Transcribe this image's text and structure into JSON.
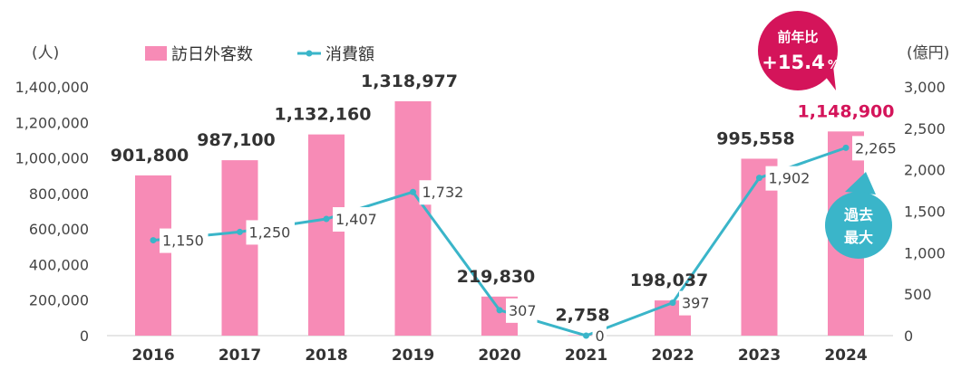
{
  "chart_data": {
    "type": "bar+line",
    "categories": [
      "2016",
      "2017",
      "2018",
      "2019",
      "2020",
      "2021",
      "2022",
      "2023",
      "2024"
    ],
    "series": [
      {
        "name": "訪日外客数",
        "type": "bar",
        "axis": "left",
        "values": [
          901800,
          987100,
          1132160,
          1318977,
          219830,
          2758,
          198037,
          995558,
          1148900
        ],
        "labels": [
          "901,800",
          "987,100",
          "1,132,160",
          "1,318,977",
          "219,830",
          "2,758",
          "198,037",
          "995,558",
          "1,148,900"
        ]
      },
      {
        "name": "消費額",
        "type": "line",
        "axis": "right",
        "values": [
          1150,
          1250,
          1407,
          1732,
          307,
          0,
          397,
          1902,
          2265
        ],
        "labels": [
          "1,150",
          "1,250",
          "1,407",
          "1,732",
          "307",
          "0",
          "397",
          "1,902",
          "2,265"
        ]
      }
    ],
    "left_axis": {
      "unit": "(人)",
      "ylim": [
        0,
        1400000
      ],
      "ticks": [
        "0",
        "200,000",
        "400,000",
        "600,000",
        "800,000",
        "1,000,000",
        "1,200,000",
        "1,400,000"
      ]
    },
    "right_axis": {
      "unit": "(億円)",
      "ylim": [
        0,
        3000
      ],
      "ticks": [
        "0",
        "500",
        "1,000",
        "1,500",
        "2,000",
        "2,500",
        "3,000"
      ]
    },
    "legend": {
      "position": "top",
      "bar_label": "訪日外客数",
      "line_label": "消費額"
    },
    "annotations": {
      "yoy_title": "前年比",
      "yoy_value": "+15.4",
      "yoy_unit": "%",
      "record_line1": "過去",
      "record_line2": "最大"
    },
    "grid": false
  },
  "colors": {
    "bar": "#f78bb6",
    "line": "#3ab5c9",
    "highlight_label": "#d4145a",
    "bubble_red": "#d4145a",
    "bubble_teal": "#3ab5c9",
    "text": "#333333",
    "axis": "#cccccc"
  }
}
